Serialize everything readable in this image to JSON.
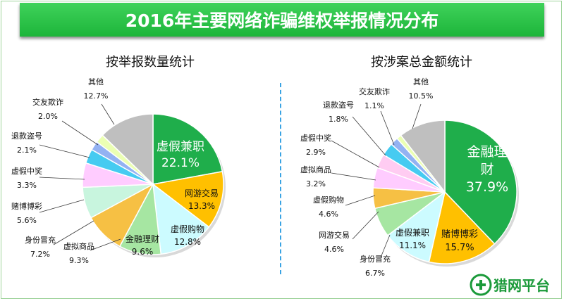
{
  "title": "2016年主要网络诈骗维权举报情况分布",
  "logo": {
    "text": "猎网平台"
  },
  "colors": {
    "banner": "#22b83f",
    "divider": "#3aa3e3"
  },
  "chart_data": [
    {
      "type": "pie",
      "title": "按举报数量统计",
      "slices": [
        {
          "name": "虚假兼职",
          "value": 22.1,
          "label": "22.1%",
          "color": "#1fae4b"
        },
        {
          "name": "网游交易",
          "value": 13.3,
          "label": "13.3%",
          "color": "#ffc000"
        },
        {
          "name": "虚假购物",
          "value": 12.8,
          "label": "12.8%",
          "color": "#ccfbff"
        },
        {
          "name": "金融理财",
          "value": 9.6,
          "label": "9.6%",
          "color": "#a6e6a2"
        },
        {
          "name": "虚拟商品",
          "value": 9.3,
          "label": "9.3%",
          "color": "#f6c044"
        },
        {
          "name": "身份冒充",
          "value": 7.2,
          "label": "7.2%",
          "color": "#c8f5de"
        },
        {
          "name": "赌博博彩",
          "value": 5.6,
          "label": "5.6%",
          "color": "#ffccff"
        },
        {
          "name": "虚假中奖",
          "value": 3.3,
          "label": "3.3%",
          "color": "#46cbf1"
        },
        {
          "name": "退款盗号",
          "value": 2.1,
          "label": "2.1%",
          "color": "#93b2f2"
        },
        {
          "name": "交友欺诈",
          "value": 2.0,
          "label": "2.0%",
          "color": "#ebffb3"
        },
        {
          "name": "其他",
          "value": 12.7,
          "label": "12.7%",
          "color": "#bfbfbf"
        }
      ]
    },
    {
      "type": "pie",
      "title": "按涉案总金额统计",
      "slices": [
        {
          "name": "金融理财",
          "value": 37.9,
          "label": "37.9%",
          "color": "#1fae4b"
        },
        {
          "name": "赌博博彩",
          "value": 15.7,
          "label": "15.7%",
          "color": "#ffc000"
        },
        {
          "name": "虚假兼职",
          "value": 11.1,
          "label": "11.1%",
          "color": "#ccfbff"
        },
        {
          "name": "身份冒充",
          "value": 6.7,
          "label": "6.7%",
          "color": "#a6e6a2"
        },
        {
          "name": "网游交易",
          "value": 4.6,
          "label": "4.6%",
          "color": "#f6c044"
        },
        {
          "name": "虚假购物",
          "value": 4.6,
          "label": "4.6%",
          "color": "#ffccff"
        },
        {
          "name": "虚拟商品",
          "value": 3.2,
          "label": "3.2%",
          "color": "#ffccf2"
        },
        {
          "name": "虚假中奖",
          "value": 2.9,
          "label": "2.9%",
          "color": "#46cbf1"
        },
        {
          "name": "退款盗号",
          "value": 1.8,
          "label": "1.8%",
          "color": "#93b2f2"
        },
        {
          "name": "交友欺诈",
          "value": 1.1,
          "label": "1.1%",
          "color": "#ebffb3"
        },
        {
          "name": "其他",
          "value": 10.5,
          "label": "10.5%",
          "color": "#bfbfbf"
        }
      ]
    }
  ]
}
